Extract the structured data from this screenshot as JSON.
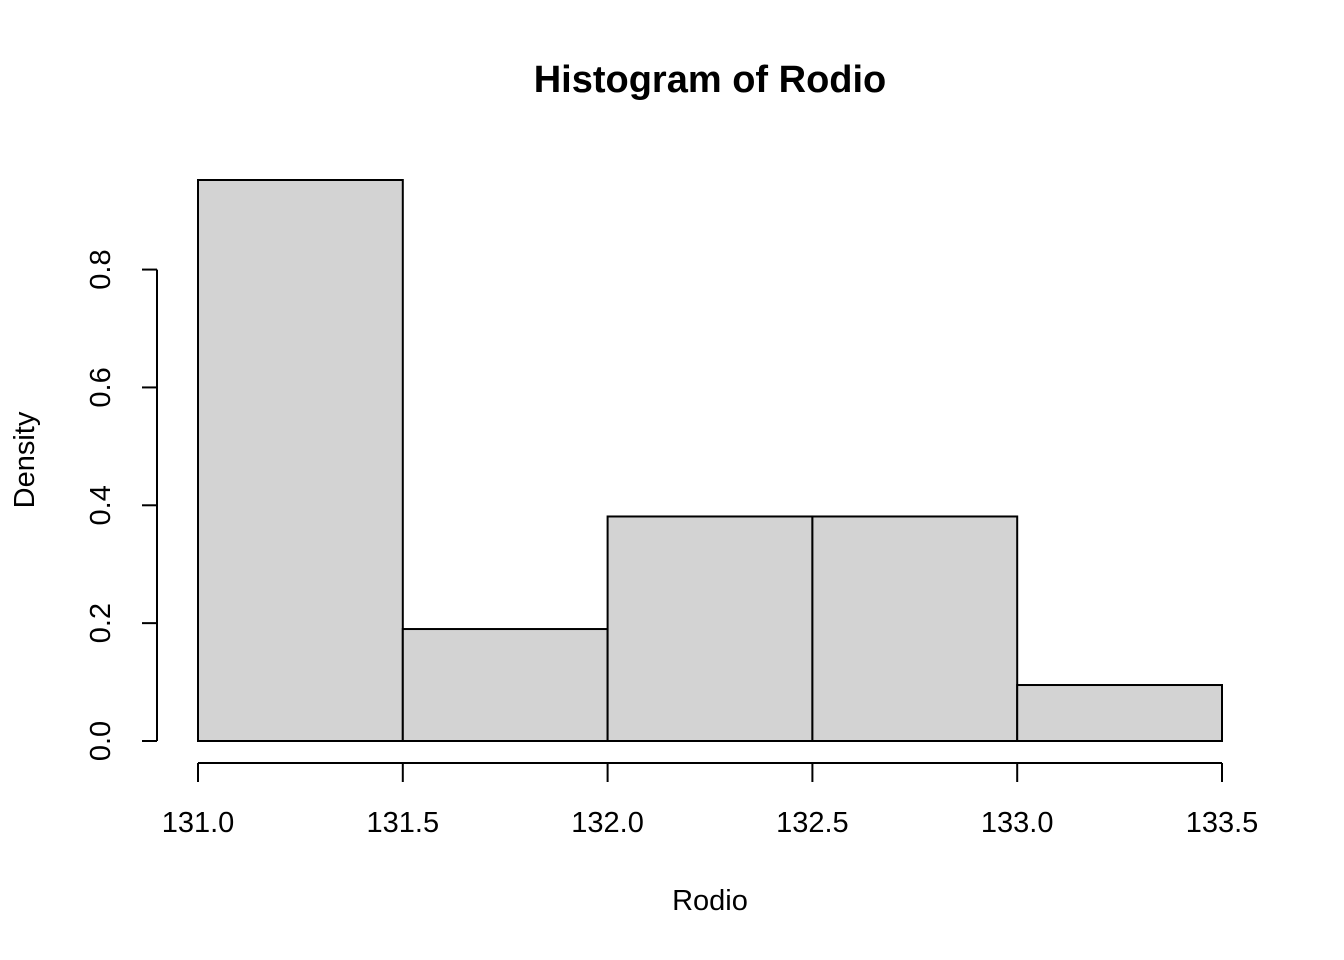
{
  "chart_data": {
    "type": "bar",
    "title": "Histogram of Rodio",
    "xlabel": "Rodio",
    "ylabel": "Density",
    "breaks": [
      131.0,
      131.5,
      132.0,
      132.5,
      133.0,
      133.5
    ],
    "values": [
      0.952,
      0.19,
      0.381,
      0.381,
      0.095
    ],
    "xlim": [
      131.0,
      133.5
    ],
    "ylim": [
      0,
      0.952
    ],
    "x_ticks": [
      "131.0",
      "131.5",
      "132.0",
      "132.5",
      "133.0",
      "133.5"
    ],
    "y_ticks": [
      "0.0",
      "0.2",
      "0.4",
      "0.6",
      "0.8"
    ],
    "bar_color": "#d3d3d3",
    "grid": false
  }
}
